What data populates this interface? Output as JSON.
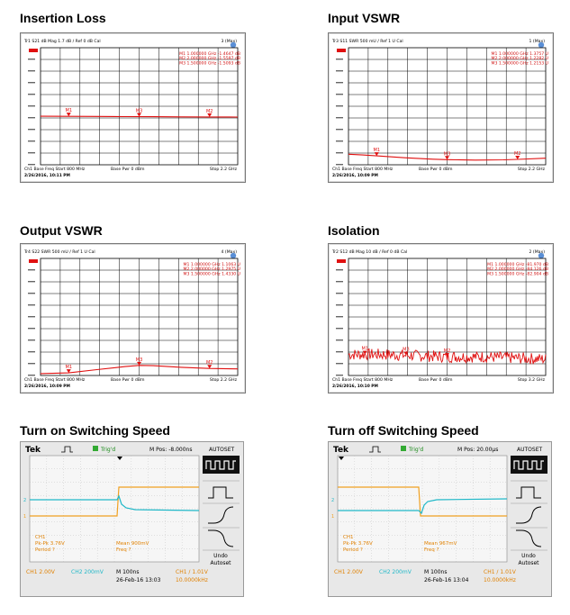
{
  "colors": {
    "trace": "#e01010",
    "marker_text": "#d01010",
    "ch1": "#f0a020",
    "ch2": "#20b8c8",
    "tek_label": "#e08000"
  },
  "sections": {
    "insertion_loss": "Insertion Loss",
    "input_vswr": "Input VSWR",
    "output_vswr": "Output VSWR",
    "isolation": "Isolation",
    "turn_on": "Turn on Switching Speed",
    "turn_off": "Turn off Switching Speed"
  },
  "vna": [
    {
      "id": "insertion_loss",
      "header": "Tr1 S21 dB Mag 1.7 dB / Ref 0 dB Cal",
      "ch_badge": "3 (Max)",
      "markers": [
        {
          "name": "M1",
          "text": "M1 1.000000 GHz -1.4647 dB"
        },
        {
          "name": "M2",
          "text": "M2 2.000000 GHz -1.5597 dB"
        },
        {
          "name": "M3",
          "text": "M3 1.500000 GHz -1.5093 dB"
        }
      ],
      "footer_left": "Ch1 Base Freq Start 800 MHz",
      "footer_mid": "Base Pwr 0 dBm",
      "footer_right": "Stop 2.2 GHz",
      "timestamp": "2/26/2016, 10:11 PM",
      "chart_data": {
        "type": "line",
        "x": [
          0.8,
          1.0,
          1.2,
          1.4,
          1.6,
          1.8,
          2.0,
          2.2
        ],
        "series": [
          {
            "values": [
              -1.45,
              -1.46,
              -1.48,
              -1.5,
              -1.52,
              -1.54,
              -1.56,
              -1.57
            ]
          }
        ],
        "xlim": [
          0.8,
          2.2
        ],
        "ylim": [
          -8.5,
          8.5
        ],
        "noise": false,
        "marker_x": [
          1.0,
          1.5,
          2.0
        ]
      }
    },
    {
      "id": "input_vswr",
      "header": "Tr3 S11 SWR 500 mU / Ref 1 U Cal",
      "ch_badge": "1 (Max)",
      "markers": [
        {
          "name": "M1",
          "text": "M1 1.000000 GHz 1.3757 U"
        },
        {
          "name": "M2",
          "text": "M2 2.000000 GHz 1.2282 U"
        },
        {
          "name": "M3",
          "text": "M3 1.500000 GHz 1.2153 U"
        }
      ],
      "footer_left": "Ch1 Base Freq Start 800 MHz",
      "footer_mid": "Base Pwr 0 dBm",
      "footer_right": "Stop 2.2 GHz",
      "timestamp": "2/26/2016, 10:09 PM",
      "chart_data": {
        "type": "line",
        "x": [
          0.8,
          0.9,
          1.0,
          1.2,
          1.4,
          1.5,
          1.7,
          1.9,
          2.0,
          2.2
        ],
        "series": [
          {
            "values": [
              1.45,
              1.42,
              1.38,
              1.3,
              1.24,
              1.22,
              1.2,
              1.21,
              1.23,
              1.28
            ]
          }
        ],
        "xlim": [
          0.8,
          2.2
        ],
        "ylim": [
          1,
          6
        ],
        "noise": false,
        "marker_x": [
          1.0,
          1.5,
          2.0
        ]
      }
    },
    {
      "id": "output_vswr",
      "header": "Tr4 S22 SWR 500 mU / Ref 1 U Cal",
      "ch_badge": "4 (Max)",
      "markers": [
        {
          "name": "M1",
          "text": "M1 1.000000 GHz 1.1063 U"
        },
        {
          "name": "M2",
          "text": "M2 2.000000 GHz 1.2975 U"
        },
        {
          "name": "M3",
          "text": "M3 1.500000 GHz 1.4330 U"
        }
      ],
      "footer_left": "Ch1 Base Freq Start 800 MHz",
      "footer_mid": "Base Pwr 0 dBm",
      "footer_right": "Stop 2.2 GHz",
      "timestamp": "2/26/2016, 10:09 PM",
      "chart_data": {
        "type": "line",
        "x": [
          0.8,
          1.0,
          1.2,
          1.4,
          1.5,
          1.6,
          1.8,
          2.0,
          2.2
        ],
        "series": [
          {
            "values": [
              1.08,
              1.11,
              1.25,
              1.38,
              1.43,
              1.42,
              1.35,
              1.3,
              1.28
            ]
          }
        ],
        "xlim": [
          0.8,
          2.2
        ],
        "ylim": [
          1,
          6
        ],
        "noise": false,
        "marker_x": [
          1.0,
          1.5,
          2.0
        ]
      }
    },
    {
      "id": "isolation",
      "header": "Tr2 S12 dB Mag 10 dB / Ref 0 dB Cal",
      "ch_badge": "2 (Max)",
      "markers": [
        {
          "name": "M1",
          "text": "M1 1.000000 GHz -81.970 dB"
        },
        {
          "name": "M2",
          "text": "M2 2.000000 GHz -84.126 dB"
        },
        {
          "name": "M3",
          "text": "M3 1.500000 GHz -82.904 dB"
        }
      ],
      "footer_left": "Ch1 Base Freq Start 800 MHz",
      "footer_mid": "Base Pwr 0 dBm",
      "footer_right": "Stop 3.2 GHz",
      "timestamp": "2/26/2016, 10:10 PM",
      "chart_data": {
        "type": "line",
        "x": [
          0.8,
          1.2,
          1.6,
          2.0,
          2.4,
          2.8,
          3.2
        ],
        "series": [
          {
            "values": [
              -82,
              -82,
              -83,
              -84,
              -84,
              -85,
              -86
            ]
          }
        ],
        "xlim": [
          0.8,
          3.2
        ],
        "ylim": [
          -100,
          0
        ],
        "noise": true,
        "marker_x": [
          1.0,
          1.5,
          2.0
        ]
      }
    }
  ],
  "scopes": [
    {
      "id": "turn_on",
      "brand": "Tek",
      "trig": "Trig'd",
      "mpos": "M Pos: -8.000ns",
      "autoset": "AUTOSET",
      "undo": "Undo",
      "undo2": "Autoset",
      "meas_ch": "CH1",
      "meas_pkpk": "Pk-Pk 3.76V",
      "meas_period": "Period ?",
      "meas_mean": "Mean 900mV",
      "meas_freq": "Freq ?",
      "ch1_scale": "CH1  2.00V",
      "ch2_scale": "CH2  200mV",
      "timebase": "M 100ns",
      "trig_lvl": "CH1 ∕ 1.01V",
      "date": "26-Feb-16 13:03",
      "freq": "10.0000kHz",
      "chart_data": {
        "type": "line",
        "edge": "rising"
      }
    },
    {
      "id": "turn_off",
      "brand": "Tek",
      "trig": "Trig'd",
      "mpos": "M Pos: 20.00µs",
      "autoset": "AUTOSET",
      "undo": "Undo",
      "undo2": "Autoset",
      "meas_ch": "CH1",
      "meas_pkpk": "Pk-Pk 3.76V",
      "meas_period": "Period ?",
      "meas_mean": "Mean 967mV",
      "meas_freq": "Freq ?",
      "ch1_scale": "CH1  2.00V",
      "ch2_scale": "CH2  200mV",
      "timebase": "M 100ns",
      "trig_lvl": "CH1 ∕ 1.01V",
      "date": "26-Feb-16 13:04",
      "freq": "10.0000kHz",
      "chart_data": {
        "type": "line",
        "edge": "falling"
      }
    }
  ]
}
